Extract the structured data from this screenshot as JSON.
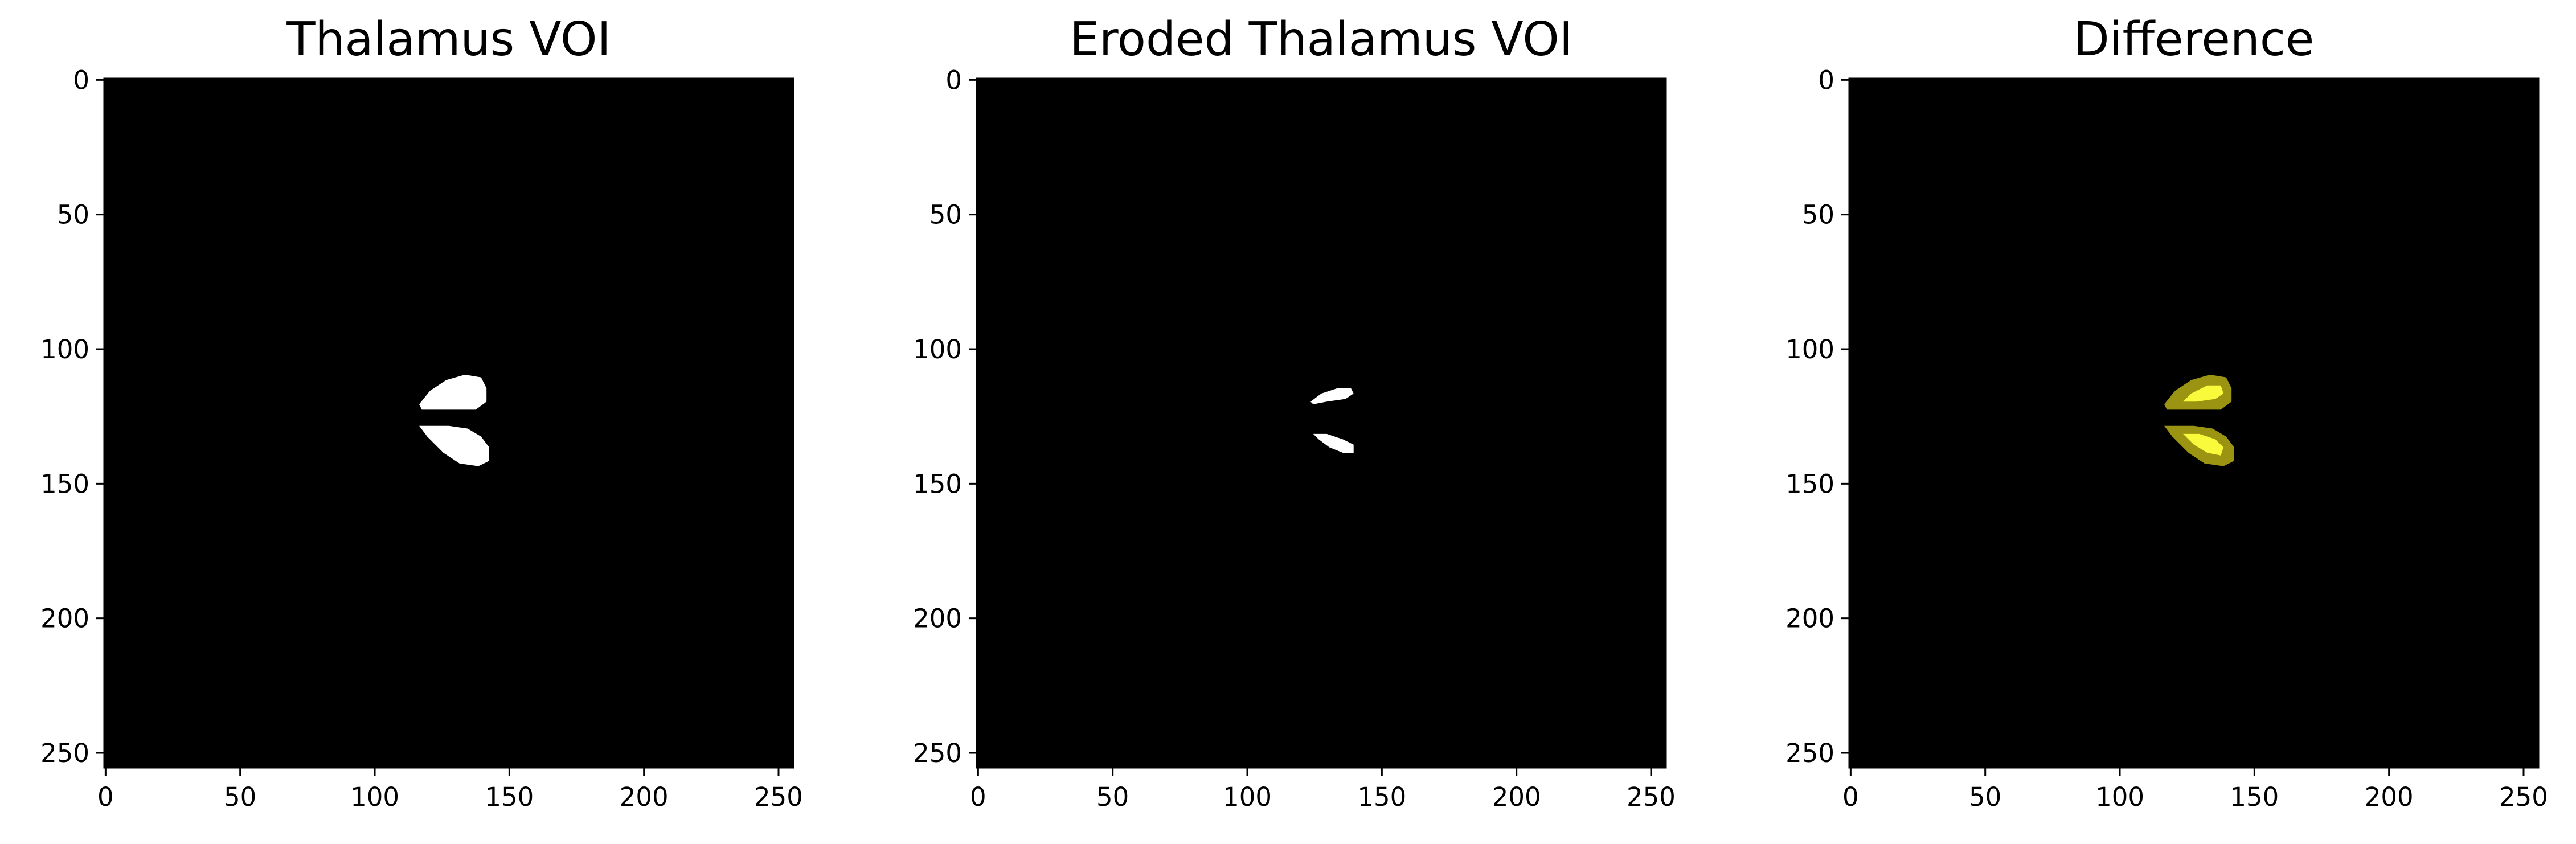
{
  "panels": [
    {
      "title": "Thalamus VOI",
      "blob_color": "#ffffff",
      "rim_color": "",
      "eroded": false
    },
    {
      "title": "Eroded Thalamus VOI",
      "blob_color": "#ffffff",
      "rim_color": "",
      "eroded": true
    },
    {
      "title": "Difference",
      "blob_color": "#fafa3c",
      "rim_color": "#9a9412",
      "eroded": false
    }
  ],
  "axes": {
    "x_ticks": [
      "0",
      "50",
      "100",
      "150",
      "200",
      "250"
    ],
    "y_ticks": [
      "0",
      "50",
      "100",
      "150",
      "200",
      "250"
    ]
  },
  "colors": {
    "image_background": "#000000",
    "figure_background": "#ffffff",
    "text": "#000000"
  }
}
